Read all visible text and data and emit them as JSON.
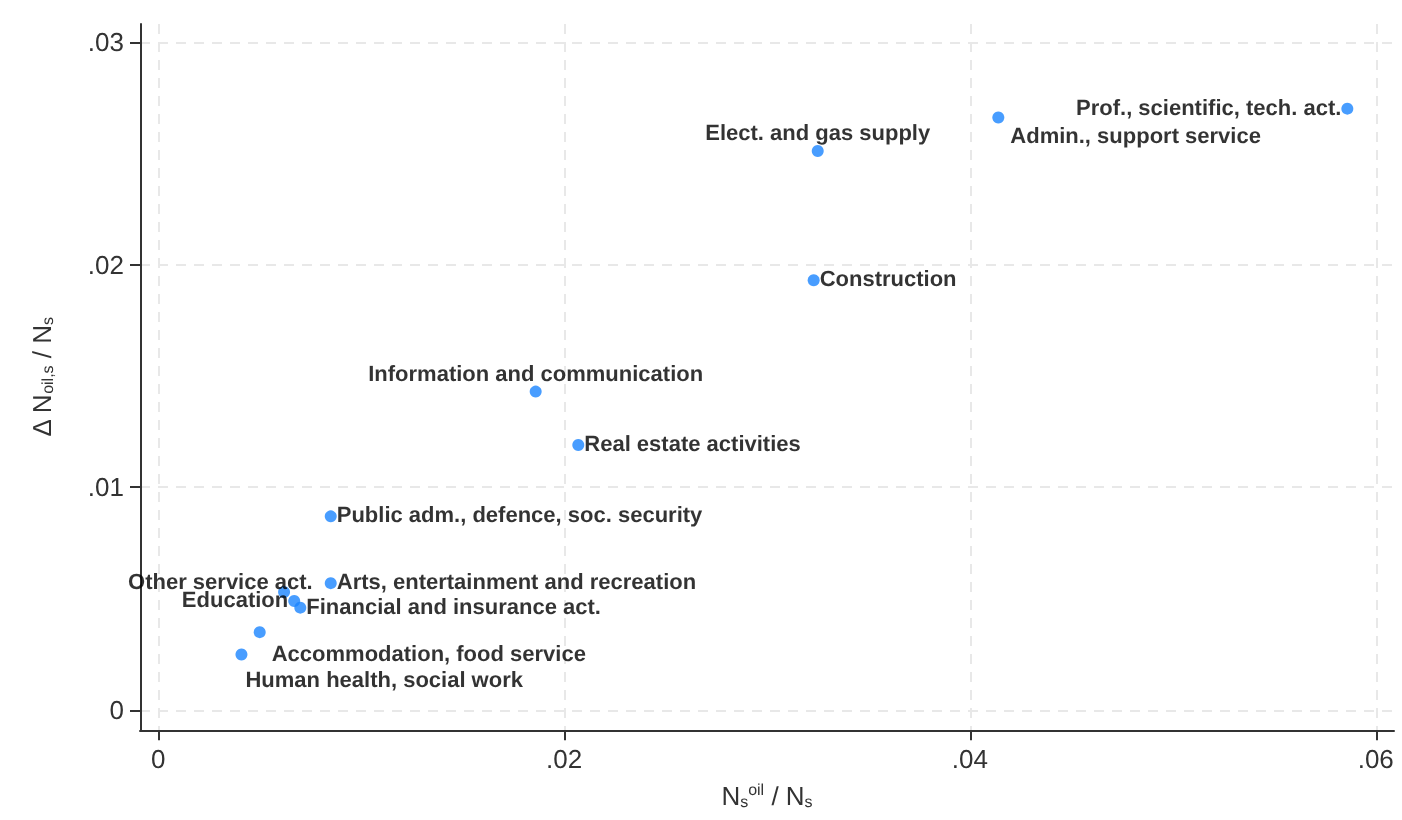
{
  "chart_data": {
    "type": "scatter",
    "xlabel": "N$_{s}$$^{oil}$ / N$_{s}$",
    "ylabel": "Δ N$_{oil,s}$ / N$_{s}$",
    "series": [
      {
        "color": "#1a85ff",
        "x": [
          0.0586,
          0.0414,
          0.0325,
          0.0323,
          0.0186,
          0.0207,
          0.0085,
          0.0085,
          0.0062,
          0.0067,
          0.007,
          0.005,
          0.0041
        ],
        "values": [
          0.027,
          0.0266,
          0.0251,
          0.0193,
          0.0143,
          0.0119,
          0.0087,
          0.0057,
          0.0053,
          0.0049,
          0.0046,
          0.0035,
          0.0025
        ]
      }
    ],
    "annotations": [
      {
        "text": "Prof., scientific, tech. act.",
        "x": 0.0586,
        "y": 0.027
      },
      {
        "text": "Admin., support service",
        "x": 0.0414,
        "y": 0.0266
      },
      {
        "text": "Elect. and gas supply",
        "x": 0.0325,
        "y": 0.0251
      },
      {
        "text": "Construction",
        "x": 0.0323,
        "y": 0.0193
      },
      {
        "text": "Information and communication",
        "x": 0.0186,
        "y": 0.0143
      },
      {
        "text": "Real estate activities",
        "x": 0.0207,
        "y": 0.0119
      },
      {
        "text": "Public adm., defence, soc. security",
        "x": 0.0085,
        "y": 0.0087
      },
      {
        "text": "Arts, entertainment and recreation",
        "x": 0.0085,
        "y": 0.0057
      },
      {
        "text": "Other service act.",
        "x": 0.0062,
        "y": 0.0053
      },
      {
        "text": "Education",
        "x": 0.0067,
        "y": 0.0049
      },
      {
        "text": "Financial and insurance act.",
        "x": 0.007,
        "y": 0.0046
      },
      {
        "text": "Accommodation, food service",
        "x": 0.005,
        "y": 0.0035
      },
      {
        "text": "Human health, social work",
        "x": 0.0041,
        "y": 0.0025
      }
    ],
    "xlim": [
      -0.0009,
      0.0609
    ],
    "ylim": [
      -0.0009,
      0.0308
    ],
    "xticks": [
      0,
      {
        "value": 0.02,
        "label": ".02"
      },
      {
        "value": 0.04,
        "label": ".04"
      },
      {
        "value": 0.06,
        "label": ".06"
      }
    ],
    "yticks": [
      0,
      {
        "value": 0.01,
        "label": ".01"
      },
      {
        "value": 0.02,
        "label": ".02"
      },
      {
        "value": 0.03,
        "label": ".03"
      }
    ],
    "grid": true,
    "marker": "circle"
  }
}
